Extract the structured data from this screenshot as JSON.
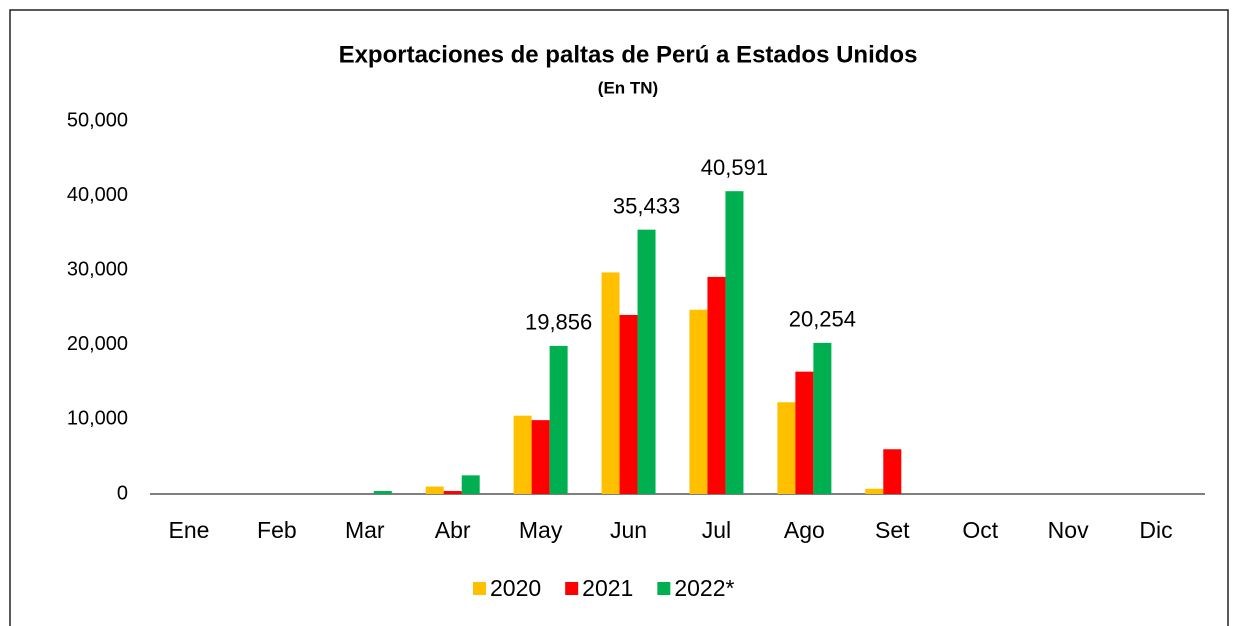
{
  "chart_data": {
    "type": "bar",
    "title": "Exportaciones de paltas de Perú a Estados Unidos",
    "subtitle": "(En TN)",
    "categories": [
      "Ene",
      "Feb",
      "Mar",
      "Abr",
      "May",
      "Jun",
      "Jul",
      "Ago",
      "Set",
      "Oct",
      "Nov",
      "Dic"
    ],
    "series": [
      {
        "name": "2020",
        "color": "#ffc000",
        "values": [
          0,
          0,
          0,
          1000,
          10500,
          29700,
          24700,
          12300,
          700,
          0,
          0,
          0
        ]
      },
      {
        "name": "2021",
        "color": "#ff0000",
        "values": [
          0,
          0,
          0,
          400,
          9900,
          24000,
          29100,
          16400,
          6000,
          0,
          0,
          0
        ]
      },
      {
        "name": "2022*",
        "color": "#00b050",
        "values": [
          0,
          0,
          400,
          2500,
          19856,
          35433,
          40591,
          20254,
          null,
          null,
          null,
          null
        ],
        "value_labels": [
          null,
          null,
          null,
          null,
          "19,856",
          "35,433",
          "40,591",
          "20,254",
          null,
          null,
          null,
          null
        ]
      }
    ],
    "ylim": [
      0,
      50000
    ],
    "yticks": [
      0,
      {
        "value": 10000,
        "label": "10,000"
      },
      {
        "value": 20000,
        "label": "20,000"
      },
      {
        "value": 30000,
        "label": "30,000"
      },
      {
        "value": 40000,
        "label": "40,000"
      },
      {
        "value": 50000,
        "label": "50,000"
      }
    ],
    "grid": false,
    "legend": "bottom"
  }
}
